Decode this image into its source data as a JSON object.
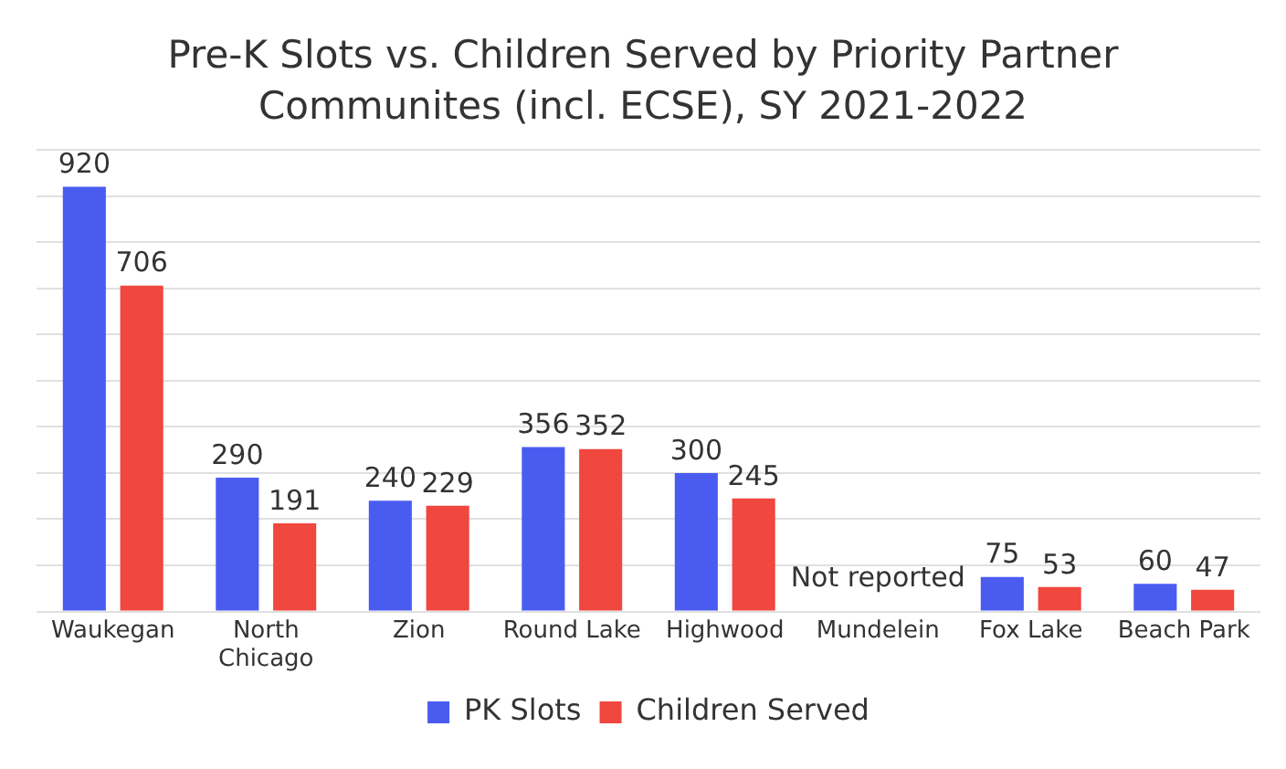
{
  "chart_data": {
    "type": "bar",
    "title": "Pre-K Slots vs. Children Served by Priority Partner Communites (incl. ECSE), SY 2021-2022",
    "categories": [
      "Waukegan",
      "North Chicago",
      "Zion",
      "Round Lake",
      "Highwood",
      "Mundelein",
      "Fox Lake",
      "Beach Park"
    ],
    "series": [
      {
        "name": "PK Slots",
        "color": "#4a5cf0",
        "values": [
          920,
          290,
          240,
          356,
          300,
          null,
          75,
          60
        ]
      },
      {
        "name": "Children Served",
        "color": "#f0473e",
        "values": [
          706,
          191,
          229,
          352,
          245,
          null,
          53,
          47
        ]
      }
    ],
    "ylim": [
      0,
      1000
    ],
    "yticks": [
      {
        "value": 0,
        "label": null
      },
      {
        "value": 100,
        "label": null
      },
      {
        "value": 200,
        "label": null
      },
      {
        "value": 300,
        "label": null
      },
      {
        "value": 400,
        "label": null
      },
      {
        "value": 500,
        "label": null
      },
      {
        "value": 600,
        "label": null
      },
      {
        "value": 700,
        "label": null
      },
      {
        "value": 800,
        "label": null
      },
      {
        "value": 900,
        "label": null
      },
      {
        "value": 1000,
        "label": null
      }
    ],
    "tick_labels": "x",
    "grid": "y",
    "legend": "bottom",
    "data_labels": true,
    "annotations": [
      "Not reported"
    ]
  }
}
